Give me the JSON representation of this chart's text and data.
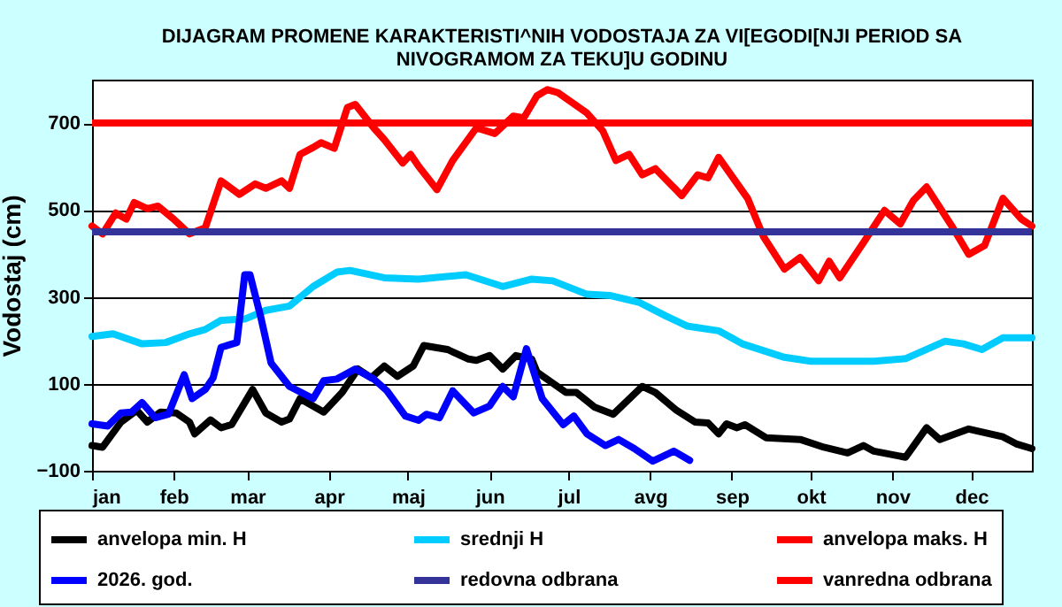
{
  "chart_data": {
    "type": "line",
    "title": "DIJAGRAM PROMENE  KARAKTERISTI^NIH  VODOSTAJA ZA VI[EGODI[NJI PERIOD  SA\nNIVOGRAMOM ZA TEKU]U  GODINU",
    "ylabel": "Vodostaj (cm)",
    "xlim": [
      "--01-01",
      "--12-24"
    ],
    "xticks": [
      {
        "value": "--01-01",
        "label": "jan"
      },
      {
        "value": "--02-01",
        "label": "feb"
      },
      {
        "value": "--03-01",
        "label": "mar"
      },
      {
        "value": "--04-01",
        "label": "apr"
      },
      {
        "value": "--05-01",
        "label": "maj"
      },
      {
        "value": "--06-01",
        "label": "jun"
      },
      {
        "value": "--07-01",
        "label": "jul"
      },
      {
        "value": "--08-01",
        "label": "avg"
      },
      {
        "value": "--09-01",
        "label": "sep"
      },
      {
        "value": "--10-01",
        "label": "okt"
      },
      {
        "value": "--11-01",
        "label": "nov"
      },
      {
        "value": "--12-01",
        "label": "dec"
      }
    ],
    "ylim": [
      -100,
      800
    ],
    "yticks": [
      -100,
      100,
      300,
      500,
      700
    ],
    "grid": "y",
    "legend": "bottom",
    "line_style": "solid",
    "marker": "none",
    "series": [
      {
        "name": "anvelopa min. H",
        "color": "#000000",
        "x": [
          "--01-01",
          "--01-05",
          "--01-12",
          "--01-18",
          "--01-22",
          "--01-27",
          "--02-02",
          "--02-07",
          "--02-09",
          "--02-15",
          "--02-19",
          "--02-23",
          "--03-03",
          "--03-08",
          "--03-14",
          "--03-17",
          "--03-21",
          "--03-30",
          "--04-06",
          "--04-12",
          "--04-17",
          "--04-22",
          "--04-27",
          "--05-03",
          "--05-07",
          "--05-16",
          "--05-24",
          "--05-27",
          "--06-01",
          "--06-06",
          "--06-11",
          "--06-17",
          "--06-19",
          "--06-30",
          "--07-04",
          "--07-11",
          "--07-18",
          "--07-29",
          "--08-03",
          "--08-11",
          "--08-18",
          "--08-23",
          "--08-27",
          "--08-30",
          "--09-03",
          "--09-06",
          "--09-14",
          "--09-27",
          "--10-06",
          "--10-15",
          "--10-21",
          "--10-25",
          "--11-06",
          "--11-14",
          "--11-19",
          "--11-30",
          "--12-13",
          "--12-18",
          "--12-24"
        ],
        "values": [
          -42,
          -46,
          12,
          39,
          12,
          35,
          33,
          12,
          -15,
          17,
          -1,
          6,
          87,
          33,
          12,
          19,
          66,
          35,
          80,
          134,
          114,
          141,
          117,
          141,
          188,
          179,
          157,
          154,
          165,
          134,
          165,
          157,
          127,
          80,
          80,
          46,
          30,
          94,
          80,
          39,
          12,
          10,
          -15,
          8,
          -1,
          6,
          -24,
          -28,
          -46,
          -59,
          -42,
          -55,
          -69,
          -1,
          -28,
          -4,
          -22,
          -38,
          -49
        ]
      },
      {
        "name": "srednji H",
        "color": "#00ccff",
        "x": [
          "--01-01",
          "--01-09",
          "--01-20",
          "--01-29",
          "--02-07",
          "--02-13",
          "--02-19",
          "--02-28",
          "--03-08",
          "--03-17",
          "--03-26",
          "--04-04",
          "--04-09",
          "--04-22",
          "--05-05",
          "--05-23",
          "--06-06",
          "--06-17",
          "--06-25",
          "--07-08",
          "--07-17",
          "--07-28",
          "--08-07",
          "--08-15",
          "--08-27",
          "--09-05",
          "--09-21",
          "--10-01",
          "--10-15",
          "--10-25",
          "--11-06",
          "--11-21",
          "--11-28",
          "--12-05",
          "--12-13",
          "--12-24"
        ],
        "values": [
          209,
          215,
          192,
          195,
          215,
          225,
          246,
          249,
          269,
          279,
          324,
          357,
          361,
          344,
          341,
          351,
          324,
          341,
          337,
          306,
          303,
          287,
          256,
          233,
          222,
          192,
          161,
          152,
          152,
          152,
          158,
          198,
          192,
          179,
          206,
          206
        ]
      },
      {
        "name": "anvelopa maks. H",
        "color": "#ff0000",
        "x": [
          "--01-01",
          "--01-05",
          "--01-10",
          "--01-14",
          "--01-17",
          "--01-22",
          "--01-26",
          "--02-01",
          "--02-07",
          "--02-13",
          "--02-19",
          "--02-26",
          "--03-04",
          "--03-08",
          "--03-14",
          "--03-17",
          "--03-21",
          "--03-26",
          "--03-29",
          "--04-03",
          "--04-08",
          "--04-11",
          "--04-18",
          "--04-22",
          "--04-29",
          "--05-02",
          "--05-05",
          "--05-12",
          "--05-18",
          "--05-27",
          "--06-03",
          "--06-10",
          "--06-14",
          "--06-19",
          "--06-23",
          "--06-27",
          "--07-08",
          "--07-14",
          "--07-19",
          "--07-24",
          "--07-29",
          "--08-03",
          "--08-13",
          "--08-19",
          "--08-23",
          "--08-27",
          "--09-07",
          "--09-13",
          "--09-21",
          "--09-27",
          "--10-04",
          "--10-08",
          "--10-12",
          "--10-21",
          "--10-29",
          "--11-04",
          "--11-09",
          "--11-14",
          "--11-24",
          "--11-30",
          "--12-06",
          "--12-13",
          "--12-20",
          "--12-24"
        ],
        "values": [
          463,
          445,
          493,
          479,
          517,
          503,
          509,
          479,
          445,
          459,
          567,
          536,
          560,
          550,
          567,
          550,
          628,
          644,
          655,
          642,
          736,
          743,
          689,
          662,
          608,
          628,
          601,
          547,
          614,
          689,
          676,
          716,
          712,
          763,
          777,
          770,
          723,
          682,
          614,
          628,
          581,
          595,
          533,
          581,
          574,
          621,
          527,
          439,
          364,
          391,
          337,
          382,
          344,
          425,
          499,
          468,
          522,
          553,
          459,
          398,
          418,
          527,
          479,
          463
        ]
      },
      {
        "name": "2026. god.",
        "color": "#0000ff",
        "x": [
          "--01-01",
          "--01-07",
          "--01-12",
          "--01-16",
          "--01-20",
          "--01-25",
          "--01-30",
          "--02-05",
          "--02-08",
          "--02-13",
          "--02-16",
          "--02-19",
          "--02-25",
          "--02-28",
          "--03-02",
          "--03-06",
          "--03-10",
          "--03-17",
          "--03-26",
          "--03-30",
          "--04-04",
          "--04-11",
          "--04-18",
          "--04-23",
          "--04-30",
          "--05-05",
          "--05-08",
          "--05-13",
          "--05-18",
          "--05-26",
          "--06-01",
          "--06-06",
          "--06-10",
          "--06-15",
          "--06-21",
          "--06-29",
          "--07-03",
          "--07-08",
          "--07-15",
          "--07-20",
          "--07-26",
          "--08-02",
          "--08-10",
          "--08-16"
        ],
        "values": [
          8,
          3,
          33,
          35,
          57,
          22,
          30,
          121,
          66,
          87,
          114,
          184,
          195,
          351,
          351,
          256,
          148,
          94,
          66,
          107,
          111,
          134,
          111,
          84,
          26,
          16,
          30,
          22,
          84,
          33,
          49,
          94,
          70,
          181,
          66,
          6,
          26,
          -15,
          -42,
          -28,
          -49,
          -78,
          -55,
          -76
        ]
      }
    ],
    "ref_lines": [
      {
        "axis": "y",
        "value": 450,
        "label": "redovna odbrana",
        "color": "#333399",
        "line_style": "solid"
      },
      {
        "axis": "y",
        "value": 700,
        "label": "vanredna odbrana",
        "color": "#ff0000",
        "line_style": "solid"
      }
    ]
  }
}
